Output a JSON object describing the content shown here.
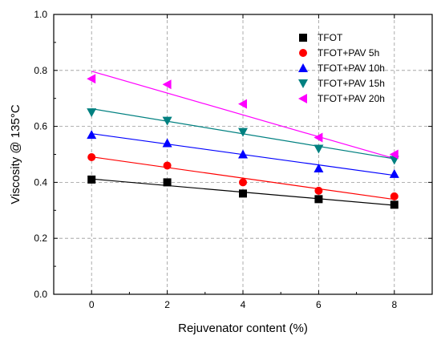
{
  "chart_data": {
    "type": "scatter",
    "xlabel": "Rejuvenator content (%)",
    "ylabel": "Viscosity @ 135°C",
    "xlim": [
      -1,
      9
    ],
    "ylim": [
      0.0,
      1.0
    ],
    "xticks": [
      "0",
      "2",
      "4",
      "6",
      "8"
    ],
    "yticks": [
      "0.0",
      "0.2",
      "0.4",
      "0.6",
      "0.8",
      "1.0"
    ],
    "grid": "dashed",
    "legend_position": "top-right",
    "fit_lines": true,
    "series": [
      {
        "name": "TFOT",
        "color": "#000000",
        "marker": "square",
        "x": [
          0,
          2,
          4,
          6,
          8
        ],
        "y": [
          0.41,
          0.4,
          0.36,
          0.34,
          0.32
        ],
        "fit": [
          0.412,
          0.318
        ]
      },
      {
        "name": "TFOT+PAV 5h",
        "color": "#ff0000",
        "marker": "circle",
        "x": [
          0,
          2,
          4,
          6,
          8
        ],
        "y": [
          0.49,
          0.46,
          0.4,
          0.37,
          0.35
        ],
        "fit": [
          0.491,
          0.339
        ]
      },
      {
        "name": "TFOT+PAV 10h",
        "color": "#0000ff",
        "marker": "triangle-up",
        "x": [
          0,
          2,
          4,
          6,
          8
        ],
        "y": [
          0.57,
          0.54,
          0.5,
          0.45,
          0.43
        ],
        "fit": [
          0.574,
          0.425
        ]
      },
      {
        "name": "TFOT+PAV 15h",
        "color": "#008080",
        "marker": "triangle-down",
        "x": [
          0,
          2,
          4,
          6,
          8
        ],
        "y": [
          0.65,
          0.62,
          0.58,
          0.52,
          0.48
        ],
        "fit": [
          0.663,
          0.484
        ]
      },
      {
        "name": "TFOT+PAV 20h",
        "color": "#ff00ff",
        "marker": "triangle-left",
        "x": [
          0,
          2,
          4,
          6,
          8
        ],
        "y": [
          0.77,
          0.75,
          0.68,
          0.56,
          0.5
        ],
        "fit": [
          0.797,
          0.485
        ]
      }
    ]
  }
}
